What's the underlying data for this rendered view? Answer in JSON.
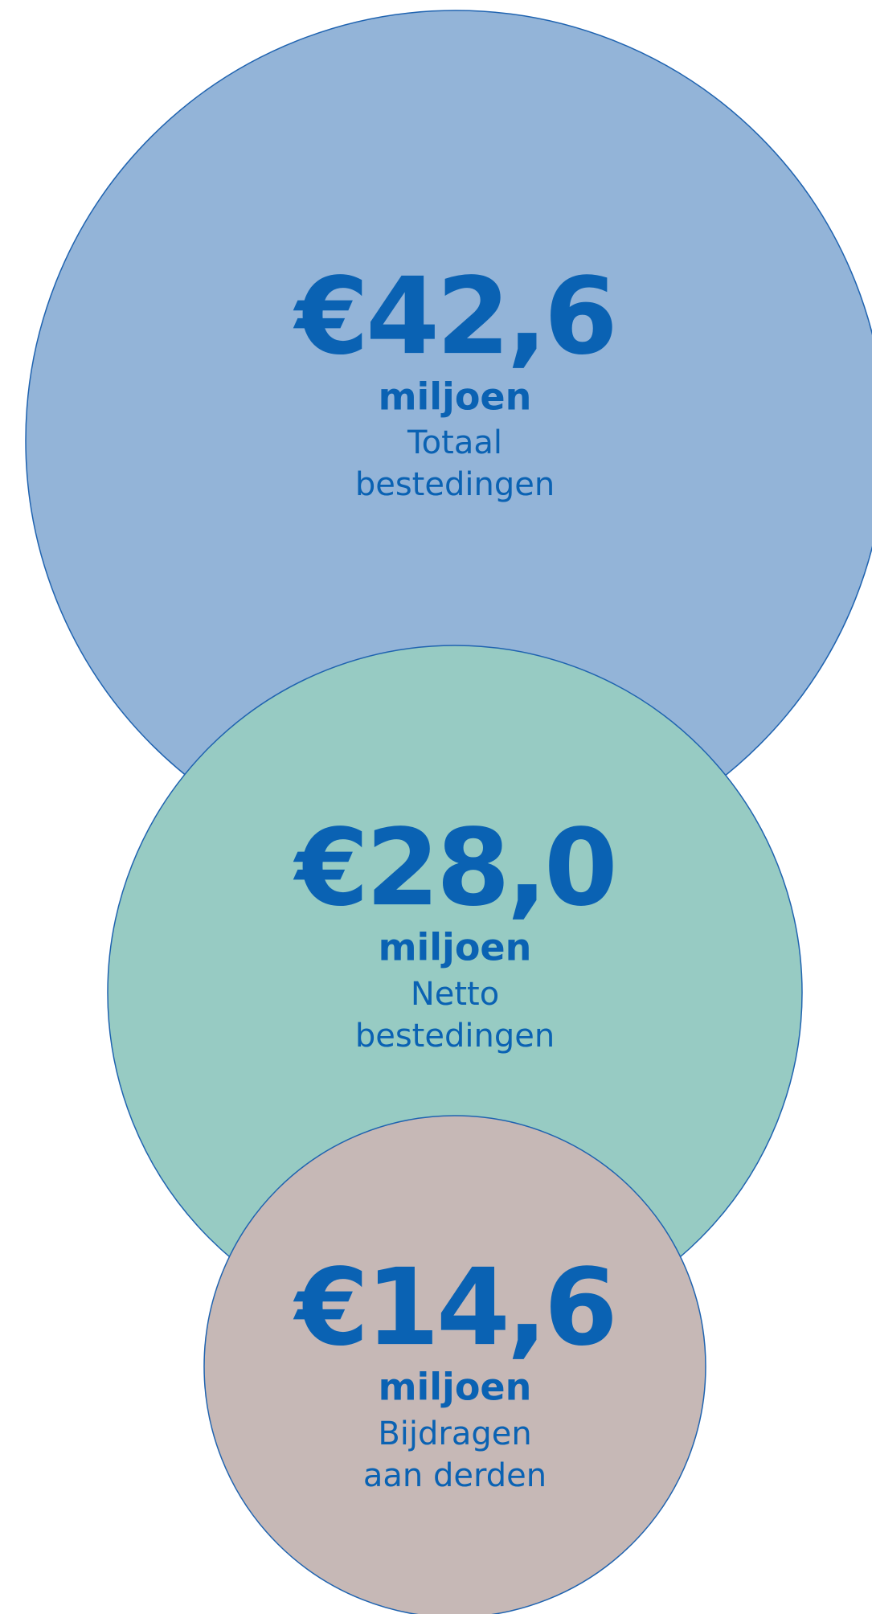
{
  "items": [
    {
      "amount": "€42,6",
      "unit": "miljoen",
      "label": [
        "Totaal",
        "bestedingen"
      ]
    },
    {
      "amount": "€28,0",
      "unit": "miljoen",
      "label": [
        "Netto",
        "bestedingen"
      ]
    },
    {
      "amount": "€14,6",
      "unit": "miljoen",
      "label": [
        "Bijdragen",
        "aan derden"
      ]
    }
  ]
}
